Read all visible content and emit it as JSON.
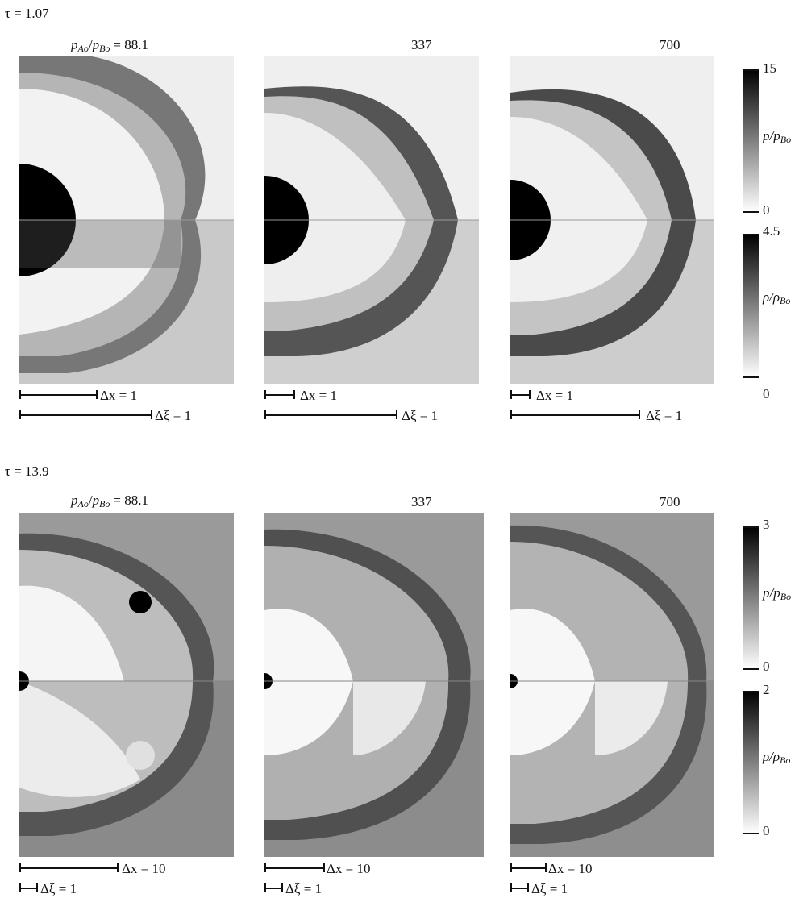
{
  "rows": [
    {
      "tau_label": "τ = 1.07",
      "panel_titles": [
        "= 88.1",
        "337",
        "700"
      ],
      "scales": [
        {
          "dx": "Δx = 1",
          "dxi": "Δξ = 1"
        },
        {
          "dx": "Δx = 1",
          "dxi": "Δξ = 1"
        },
        {
          "dx": "Δx = 1",
          "dxi": "Δξ = 1"
        }
      ],
      "colorbars": {
        "pressure": {
          "max": "15",
          "min": "0"
        },
        "density": {
          "max": "4.5",
          "min": "0"
        }
      }
    },
    {
      "tau_label": "τ = 13.9",
      "panel_titles": [
        "= 88.1",
        "337",
        "700"
      ],
      "scales": [
        {
          "dx": "Δx = 10",
          "dxi": "Δξ = 1"
        },
        {
          "dx": "Δx = 10",
          "dxi": "Δξ = 1"
        },
        {
          "dx": "Δx = 10",
          "dxi": "Δξ = 1"
        }
      ],
      "colorbars": {
        "pressure": {
          "max": "3",
          "min": "0"
        },
        "density": {
          "max": "2",
          "min": "0"
        }
      }
    }
  ],
  "labels": {
    "ratio_prefix": "pAo/pBo",
    "pressure_axis": "p/pBo",
    "density_axis": "ρ/ρBo"
  }
}
